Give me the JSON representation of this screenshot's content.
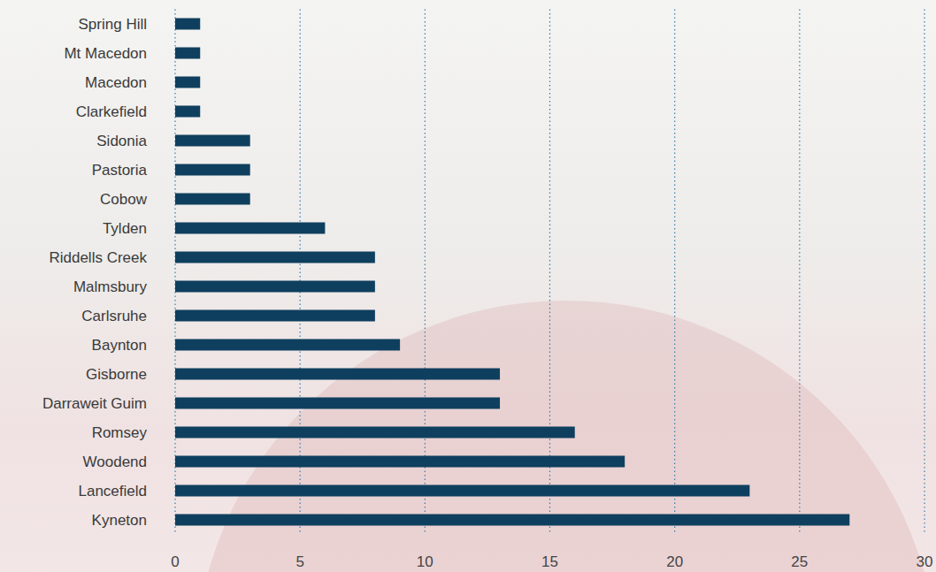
{
  "chart_data": {
    "type": "bar",
    "orientation": "horizontal",
    "categories": [
      "Spring Hill",
      "Mt Macedon",
      "Macedon",
      "Clarkefield",
      "Sidonia",
      "Pastoria",
      "Cobow",
      "Tylden",
      "Riddells Creek",
      "Malmsbury",
      "Carlsruhe",
      "Baynton",
      "Gisborne",
      "Darraweit Guim",
      "Romsey",
      "Woodend",
      "Lancefield",
      "Kyneton"
    ],
    "values": [
      1,
      1,
      1,
      1,
      3,
      3,
      3,
      6,
      8,
      8,
      8,
      9,
      13,
      13,
      16,
      18,
      23,
      27
    ],
    "color": "#0f3f5e",
    "xlim": [
      0,
      30
    ],
    "xticks": [
      0,
      5,
      10,
      15,
      20,
      25,
      30
    ],
    "grid": true
  }
}
